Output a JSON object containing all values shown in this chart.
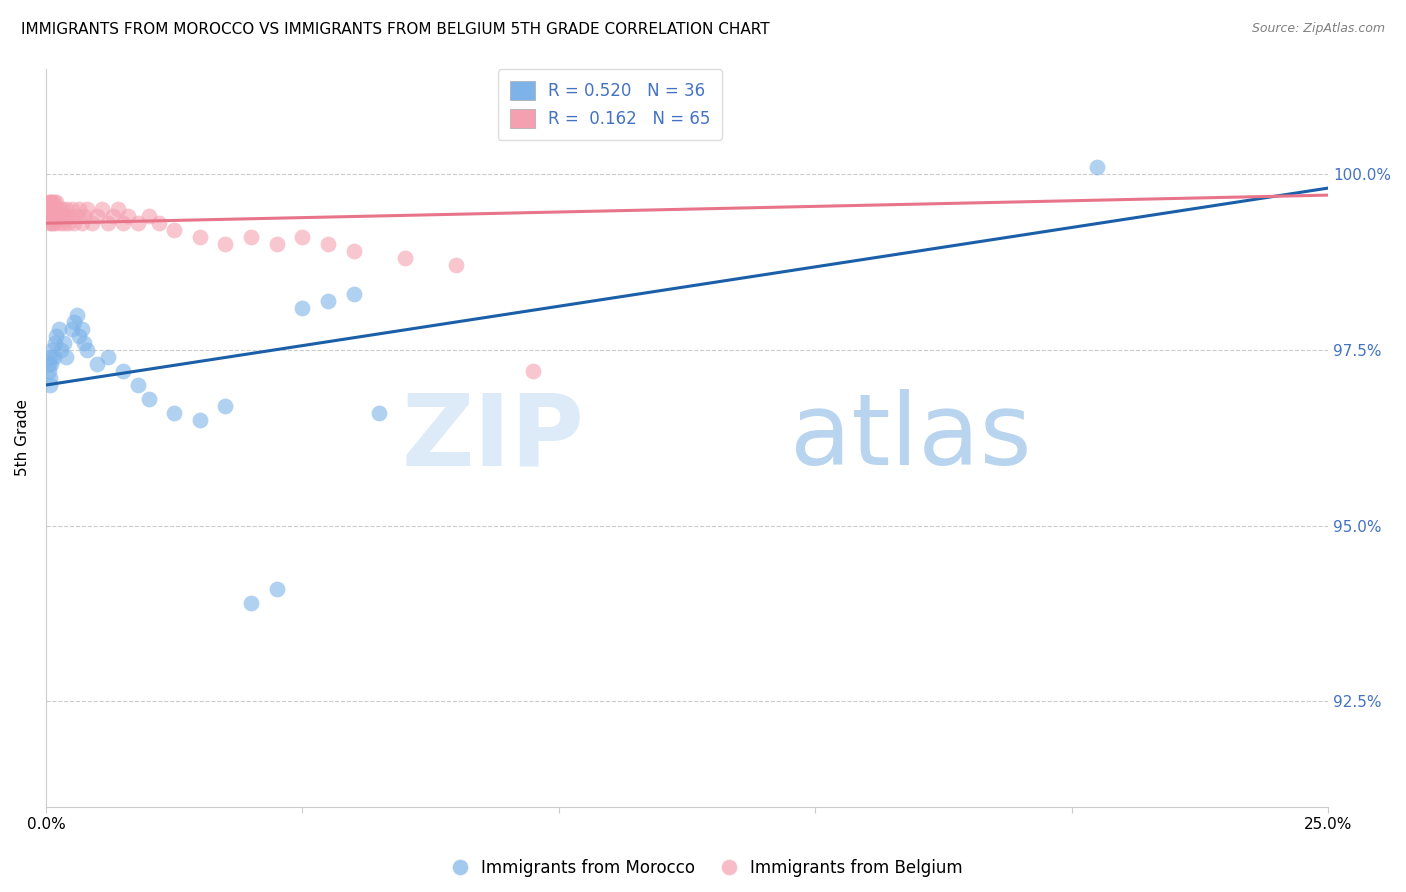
{
  "title": "IMMIGRANTS FROM MOROCCO VS IMMIGRANTS FROM BELGIUM 5TH GRADE CORRELATION CHART",
  "source": "Source: ZipAtlas.com",
  "ylabel": "5th Grade",
  "xlim": [
    0.0,
    25.0
  ],
  "ylim": [
    91.0,
    101.5
  ],
  "yticks": [
    92.5,
    95.0,
    97.5,
    100.0
  ],
  "ytick_labels": [
    "92.5%",
    "95.0%",
    "97.5%",
    "100.0%"
  ],
  "xticks": [
    0.0,
    5.0,
    10.0,
    15.0,
    20.0,
    25.0
  ],
  "xtick_labels": [
    "0.0%",
    "",
    "",
    "",
    "",
    "25.0%"
  ],
  "morocco_color": "#7db3e8",
  "belgium_color": "#f4a0b0",
  "morocco_line_color": "#1a5fa8",
  "belgium_line_color": "#e8748a",
  "R_morocco": 0.52,
  "N_morocco": 36,
  "R_belgium": 0.162,
  "N_belgium": 65,
  "legend_morocco": "Immigrants from Morocco",
  "legend_belgium": "Immigrants from Belgium",
  "watermark_zip": "ZIP",
  "watermark_atlas": "atlas",
  "morocco_x": [
    0.05,
    0.06,
    0.07,
    0.08,
    0.09,
    0.1,
    0.12,
    0.15,
    0.18,
    0.2,
    0.25,
    0.3,
    0.35,
    0.4,
    0.5,
    0.55,
    0.6,
    0.65,
    0.7,
    0.75,
    0.8,
    1.0,
    1.2,
    1.5,
    1.8,
    2.0,
    2.5,
    3.0,
    3.5,
    4.0,
    4.5,
    5.0,
    5.5,
    6.0,
    6.5,
    20.5
  ],
  "morocco_y": [
    97.2,
    97.3,
    97.1,
    97.0,
    97.4,
    97.3,
    97.5,
    97.4,
    97.6,
    97.7,
    97.8,
    97.5,
    97.6,
    97.4,
    97.8,
    97.9,
    98.0,
    97.7,
    97.8,
    97.6,
    97.5,
    97.3,
    97.4,
    97.2,
    97.0,
    96.8,
    96.6,
    96.5,
    96.7,
    93.9,
    94.1,
    98.1,
    98.2,
    98.3,
    96.6,
    100.1
  ],
  "belgium_x": [
    0.05,
    0.05,
    0.06,
    0.06,
    0.07,
    0.07,
    0.08,
    0.08,
    0.09,
    0.09,
    0.1,
    0.1,
    0.11,
    0.11,
    0.12,
    0.12,
    0.13,
    0.14,
    0.15,
    0.15,
    0.16,
    0.17,
    0.18,
    0.19,
    0.2,
    0.2,
    0.22,
    0.25,
    0.27,
    0.3,
    0.32,
    0.35,
    0.37,
    0.4,
    0.42,
    0.45,
    0.5,
    0.55,
    0.6,
    0.65,
    0.7,
    0.75,
    0.8,
    0.9,
    1.0,
    1.1,
    1.2,
    1.3,
    1.4,
    1.5,
    1.6,
    1.8,
    2.0,
    2.2,
    2.5,
    3.0,
    3.5,
    4.0,
    4.5,
    5.0,
    5.5,
    6.0,
    7.0,
    8.0,
    9.5
  ],
  "belgium_y": [
    99.5,
    99.6,
    99.4,
    99.5,
    99.3,
    99.6,
    99.5,
    99.4,
    99.5,
    99.6,
    99.4,
    99.3,
    99.5,
    99.6,
    99.4,
    99.5,
    99.3,
    99.4,
    99.5,
    99.6,
    99.4,
    99.5,
    99.3,
    99.4,
    99.5,
    99.6,
    99.4,
    99.5,
    99.3,
    99.4,
    99.5,
    99.3,
    99.4,
    99.5,
    99.3,
    99.4,
    99.5,
    99.3,
    99.4,
    99.5,
    99.3,
    99.4,
    99.5,
    99.3,
    99.4,
    99.5,
    99.3,
    99.4,
    99.5,
    99.3,
    99.4,
    99.3,
    99.4,
    99.3,
    99.2,
    99.1,
    99.0,
    99.1,
    99.0,
    99.1,
    99.0,
    98.9,
    98.8,
    98.7,
    97.2
  ],
  "morocco_trendline_x": [
    0.0,
    25.0
  ],
  "morocco_trendline_y": [
    97.0,
    99.8
  ],
  "belgium_trendline_x": [
    0.0,
    25.0
  ],
  "belgium_trendline_y": [
    99.3,
    99.7
  ]
}
